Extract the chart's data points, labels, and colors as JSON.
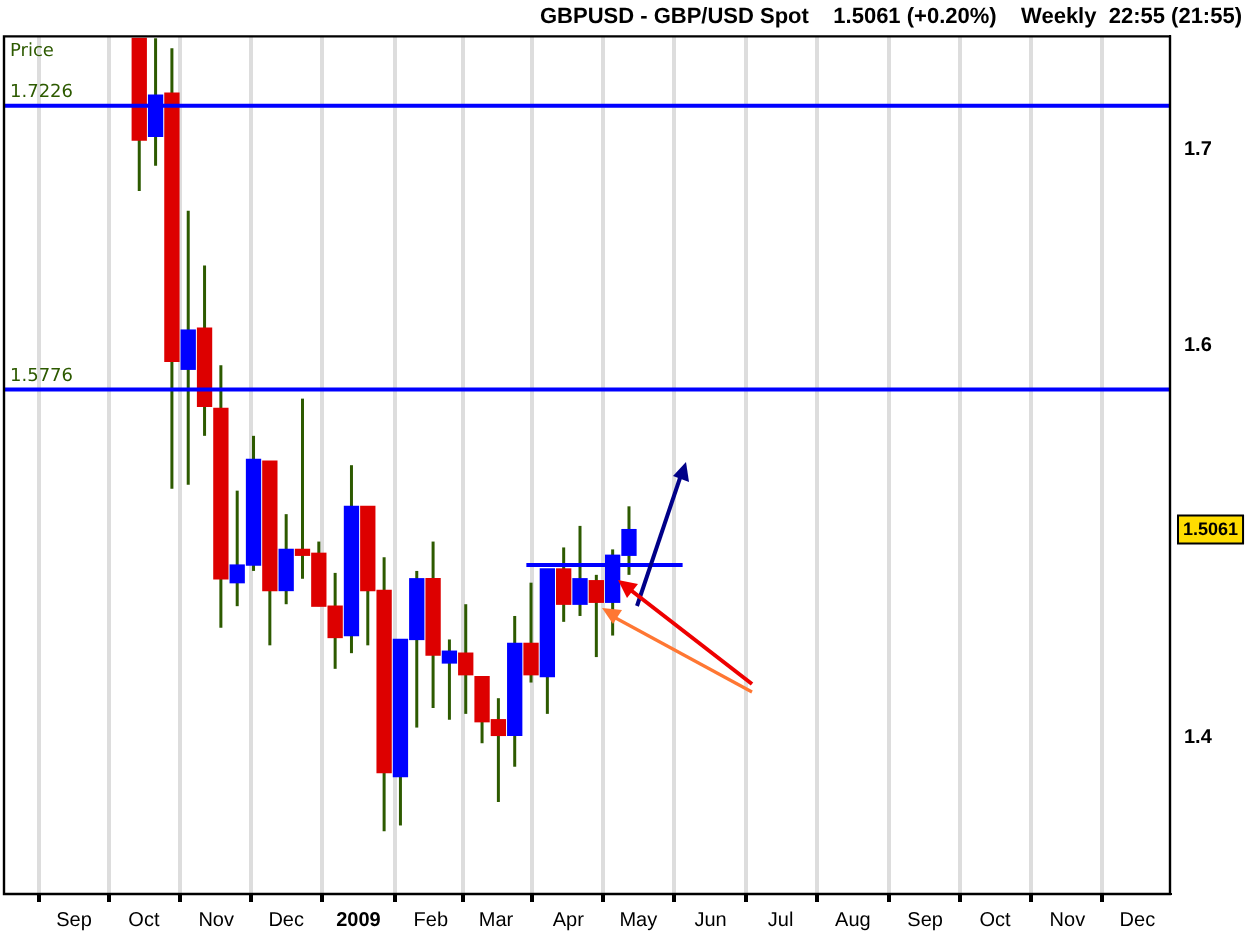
{
  "chart_data": {
    "type": "candlestick",
    "title": "GBPUSD - GBP/USD Spot    1.5061 (+0.20%)    Weekly  22:55 (21:55)",
    "ylabel": "Price",
    "x": [
      "2008-09-29",
      "2008-10-06",
      "2008-10-13",
      "2008-10-20",
      "2008-10-27",
      "2008-11-03",
      "2008-11-10",
      "2008-11-17",
      "2008-11-24",
      "2008-12-01",
      "2008-12-08",
      "2008-12-15",
      "2008-12-22",
      "2008-12-29",
      "2009-01-05",
      "2009-01-12",
      "2009-01-19",
      "2009-01-26",
      "2009-02-02",
      "2009-02-09",
      "2009-02-16",
      "2009-02-23",
      "2009-03-02",
      "2009-03-09",
      "2009-03-16",
      "2009-03-23",
      "2009-03-30",
      "2009-04-06",
      "2009-04-13",
      "2009-04-20",
      "2009-04-27"
    ],
    "ohlc": [
      [
        1.757,
        1.757,
        1.679,
        1.705
      ],
      [
        1.707,
        1.757,
        1.692,
        1.728
      ],
      [
        1.729,
        1.752,
        1.527,
        1.592
      ],
      [
        1.588,
        1.669,
        1.529,
        1.608
      ],
      [
        1.609,
        1.641,
        1.554,
        1.569
      ],
      [
        1.568,
        1.59,
        1.456,
        1.481
      ],
      [
        1.479,
        1.526,
        1.467,
        1.488
      ],
      [
        1.488,
        1.554,
        1.485,
        1.542
      ],
      [
        1.541,
        1.541,
        1.447,
        1.475
      ],
      [
        1.475,
        1.514,
        1.468,
        1.496
      ],
      [
        1.496,
        1.573,
        1.481,
        1.493
      ],
      [
        1.494,
        1.5,
        1.467,
        1.467
      ],
      [
        1.467,
        1.484,
        1.435,
        1.451
      ],
      [
        1.452,
        1.539,
        1.443,
        1.518
      ],
      [
        1.518,
        1.518,
        1.447,
        1.475
      ],
      [
        1.475,
        1.492,
        1.352,
        1.382
      ],
      [
        1.38,
        1.45,
        1.355,
        1.45
      ],
      [
        1.45,
        1.485,
        1.405,
        1.481
      ],
      [
        1.481,
        1.5,
        1.415,
        1.442
      ],
      [
        1.438,
        1.45,
        1.409,
        1.444
      ],
      [
        1.443,
        1.468,
        1.412,
        1.432
      ],
      [
        1.431,
        1.431,
        1.397,
        1.408
      ],
      [
        1.409,
        1.42,
        1.367,
        1.401
      ],
      [
        1.401,
        1.462,
        1.385,
        1.448
      ],
      [
        1.448,
        1.479,
        1.428,
        1.432
      ],
      [
        1.431,
        1.486,
        1.412,
        1.486
      ],
      [
        1.486,
        1.497,
        1.459,
        1.468
      ],
      [
        1.468,
        1.508,
        1.462,
        1.481
      ],
      [
        1.48,
        1.483,
        1.441,
        1.469
      ],
      [
        1.469,
        1.496,
        1.452,
        1.493
      ],
      [
        1.493,
        1.518,
        1.483,
        1.5061
      ]
    ],
    "colors": [
      "#dd0000",
      "#0000ff",
      "#dd0000",
      "#0000ff",
      "#dd0000",
      "#dd0000",
      "#0000ff",
      "#0000ff",
      "#dd0000",
      "#0000ff",
      "#dd0000",
      "#dd0000",
      "#dd0000",
      "#0000ff",
      "#dd0000",
      "#dd0000",
      "#0000ff",
      "#0000ff",
      "#dd0000",
      "#0000ff",
      "#dd0000",
      "#dd0000",
      "#dd0000",
      "#0000ff",
      "#dd0000",
      "#0000ff",
      "#dd0000",
      "#0000ff",
      "#dd0000",
      "#0000ff",
      "#0000ff"
    ],
    "series": [
      {
        "type": "line",
        "color": "#0000ff",
        "x": [
          "2009-03-14",
          "2009-05-20"
        ],
        "values": [
          1.488,
          1.488
        ]
      }
    ],
    "xlim": [
      "2008-08-02",
      "2009-12-15"
    ],
    "xticks": [
      {
        "value": "2008-09-01",
        "label": "Sep"
      },
      {
        "value": "2008-10-01",
        "label": "Oct"
      },
      {
        "value": "2008-11-01",
        "label": "Nov"
      },
      {
        "value": "2008-12-01",
        "label": "Dec"
      },
      {
        "value": "2009-01-01",
        "label": "2009"
      },
      {
        "value": "2009-02-01",
        "label": "Feb"
      },
      {
        "value": "2009-03-01",
        "label": "Mar"
      },
      {
        "value": "2009-04-01",
        "label": "Apr"
      },
      {
        "value": "2009-05-01",
        "label": "May"
      },
      {
        "value": "2009-06-01",
        "label": "Jun"
      },
      {
        "value": "2009-07-01",
        "label": "Jul"
      },
      {
        "value": "2009-08-01",
        "label": "Aug"
      },
      {
        "value": "2009-09-01",
        "label": "Sep"
      },
      {
        "value": "2009-10-01",
        "label": "Oct"
      },
      {
        "value": "2009-11-01",
        "label": "Nov"
      },
      {
        "value": "2009-12-01",
        "label": "Dec"
      }
    ],
    "ylim": [
      1.32,
      1.758
    ],
    "yticks": [
      1.4,
      1.6,
      1.7
    ],
    "ref_lines": [
      {
        "axis": "y",
        "value": 1.7226,
        "label": "1.7226",
        "color": "#0000ff"
      },
      {
        "axis": "y",
        "value": 1.5776,
        "label": "1.5776",
        "color": "#0000ff"
      }
    ],
    "annotations": [
      "1.5061"
    ],
    "grid": "x",
    "legend": false
  }
}
